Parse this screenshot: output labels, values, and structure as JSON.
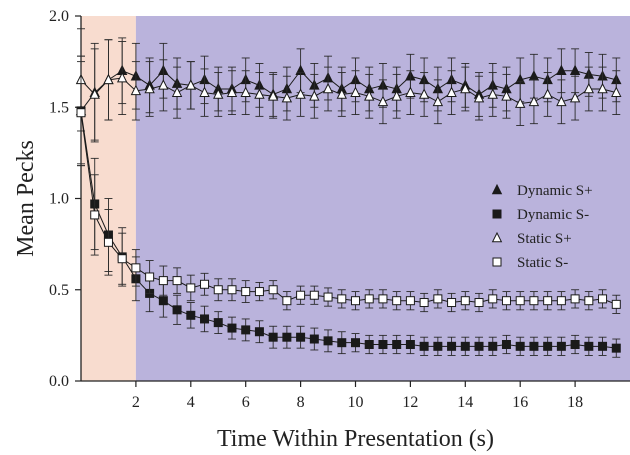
{
  "chart_data": {
    "type": "line",
    "xlabel": "Time Within Presentation (s)",
    "ylabel": "Mean Pecks",
    "xlim": [
      0,
      20
    ],
    "ylim": [
      0,
      2.0
    ],
    "x_ticks": [
      2,
      4,
      6,
      8,
      10,
      12,
      14,
      16,
      18
    ],
    "x_tick_labels": [
      "2",
      "4",
      "6",
      "8",
      "10",
      "12",
      "14",
      "16",
      "18"
    ],
    "y_ticks": [
      0,
      0.5,
      1.0,
      1.5,
      2.0
    ],
    "y_tick_labels": [
      "0.0",
      "0.5",
      "1.0",
      "1.5",
      "2.0"
    ],
    "regions": [
      {
        "x0": 0,
        "x1": 2,
        "color": "#f8dccf"
      },
      {
        "x0": 2,
        "x1": 20,
        "color": "#bab3dc"
      }
    ],
    "legend_position": "right",
    "x": [
      0.0,
      0.5,
      1.0,
      1.5,
      2.0,
      2.5,
      3.0,
      3.5,
      4.0,
      4.5,
      5.0,
      5.5,
      6.0,
      6.5,
      7.0,
      7.5,
      8.0,
      8.5,
      9.0,
      9.5,
      10.0,
      10.5,
      11.0,
      11.5,
      12.0,
      12.5,
      13.0,
      13.5,
      14.0,
      14.5,
      15.0,
      15.5,
      16.0,
      16.5,
      17.0,
      17.5,
      18.0,
      18.5,
      19.0,
      19.5
    ],
    "series": [
      {
        "name": "Dynamic S+",
        "marker": "triangle-filled",
        "values": [
          1.48,
          1.58,
          1.65,
          1.7,
          1.67,
          1.62,
          1.7,
          1.63,
          1.62,
          1.65,
          1.6,
          1.6,
          1.65,
          1.62,
          1.57,
          1.6,
          1.7,
          1.62,
          1.66,
          1.6,
          1.65,
          1.6,
          1.62,
          1.6,
          1.67,
          1.65,
          1.6,
          1.65,
          1.62,
          1.57,
          1.62,
          1.6,
          1.65,
          1.67,
          1.65,
          1.7,
          1.7,
          1.68,
          1.67,
          1.65
        ],
        "errors": [
          0.3,
          0.27,
          0.22,
          0.18,
          0.18,
          0.15,
          0.15,
          0.14,
          0.13,
          0.13,
          0.12,
          0.12,
          0.12,
          0.12,
          0.12,
          0.12,
          0.12,
          0.12,
          0.12,
          0.12,
          0.12,
          0.12,
          0.12,
          0.12,
          0.12,
          0.12,
          0.12,
          0.12,
          0.12,
          0.12,
          0.12,
          0.12,
          0.12,
          0.12,
          0.12,
          0.12,
          0.12,
          0.12,
          0.12,
          0.12
        ]
      },
      {
        "name": "Dynamic S-",
        "marker": "square-filled",
        "values": [
          1.48,
          0.97,
          0.8,
          0.68,
          0.56,
          0.48,
          0.44,
          0.39,
          0.36,
          0.34,
          0.32,
          0.29,
          0.28,
          0.27,
          0.24,
          0.24,
          0.24,
          0.23,
          0.22,
          0.21,
          0.21,
          0.2,
          0.2,
          0.2,
          0.2,
          0.19,
          0.19,
          0.19,
          0.19,
          0.19,
          0.19,
          0.2,
          0.19,
          0.19,
          0.19,
          0.19,
          0.2,
          0.19,
          0.19,
          0.18
        ],
        "errors": [
          0.3,
          0.25,
          0.2,
          0.16,
          0.12,
          0.1,
          0.09,
          0.08,
          0.07,
          0.07,
          0.06,
          0.06,
          0.06,
          0.06,
          0.06,
          0.06,
          0.06,
          0.06,
          0.06,
          0.06,
          0.05,
          0.05,
          0.05,
          0.05,
          0.05,
          0.05,
          0.05,
          0.05,
          0.05,
          0.05,
          0.05,
          0.05,
          0.05,
          0.05,
          0.05,
          0.05,
          0.05,
          0.05,
          0.05,
          0.05
        ]
      },
      {
        "name": "Static S+",
        "marker": "triangle-open",
        "values": [
          1.65,
          1.57,
          1.65,
          1.66,
          1.59,
          1.6,
          1.62,
          1.58,
          1.62,
          1.58,
          1.57,
          1.58,
          1.58,
          1.57,
          1.56,
          1.55,
          1.57,
          1.56,
          1.6,
          1.57,
          1.58,
          1.56,
          1.53,
          1.56,
          1.58,
          1.57,
          1.53,
          1.58,
          1.6,
          1.55,
          1.57,
          1.56,
          1.52,
          1.53,
          1.57,
          1.53,
          1.55,
          1.6,
          1.6,
          1.58
        ],
        "errors": [
          0.28,
          0.25,
          0.22,
          0.2,
          0.16,
          0.15,
          0.14,
          0.14,
          0.13,
          0.13,
          0.12,
          0.12,
          0.12,
          0.12,
          0.12,
          0.12,
          0.12,
          0.12,
          0.12,
          0.12,
          0.12,
          0.12,
          0.12,
          0.12,
          0.12,
          0.12,
          0.12,
          0.12,
          0.12,
          0.12,
          0.12,
          0.12,
          0.12,
          0.12,
          0.12,
          0.12,
          0.12,
          0.12,
          0.12,
          0.12
        ]
      },
      {
        "name": "Static S-",
        "marker": "square-open",
        "values": [
          1.47,
          0.91,
          0.76,
          0.67,
          0.62,
          0.57,
          0.55,
          0.55,
          0.51,
          0.53,
          0.5,
          0.5,
          0.49,
          0.49,
          0.5,
          0.44,
          0.47,
          0.47,
          0.46,
          0.45,
          0.44,
          0.45,
          0.45,
          0.44,
          0.44,
          0.43,
          0.45,
          0.43,
          0.44,
          0.43,
          0.45,
          0.44,
          0.44,
          0.44,
          0.44,
          0.44,
          0.45,
          0.44,
          0.45,
          0.42
        ],
        "errors": [
          0.28,
          0.22,
          0.18,
          0.14,
          0.1,
          0.09,
          0.08,
          0.07,
          0.07,
          0.06,
          0.06,
          0.06,
          0.06,
          0.05,
          0.05,
          0.05,
          0.05,
          0.05,
          0.05,
          0.05,
          0.05,
          0.05,
          0.05,
          0.05,
          0.05,
          0.05,
          0.05,
          0.05,
          0.05,
          0.05,
          0.05,
          0.05,
          0.05,
          0.05,
          0.05,
          0.05,
          0.05,
          0.05,
          0.05,
          0.05
        ]
      }
    ]
  }
}
